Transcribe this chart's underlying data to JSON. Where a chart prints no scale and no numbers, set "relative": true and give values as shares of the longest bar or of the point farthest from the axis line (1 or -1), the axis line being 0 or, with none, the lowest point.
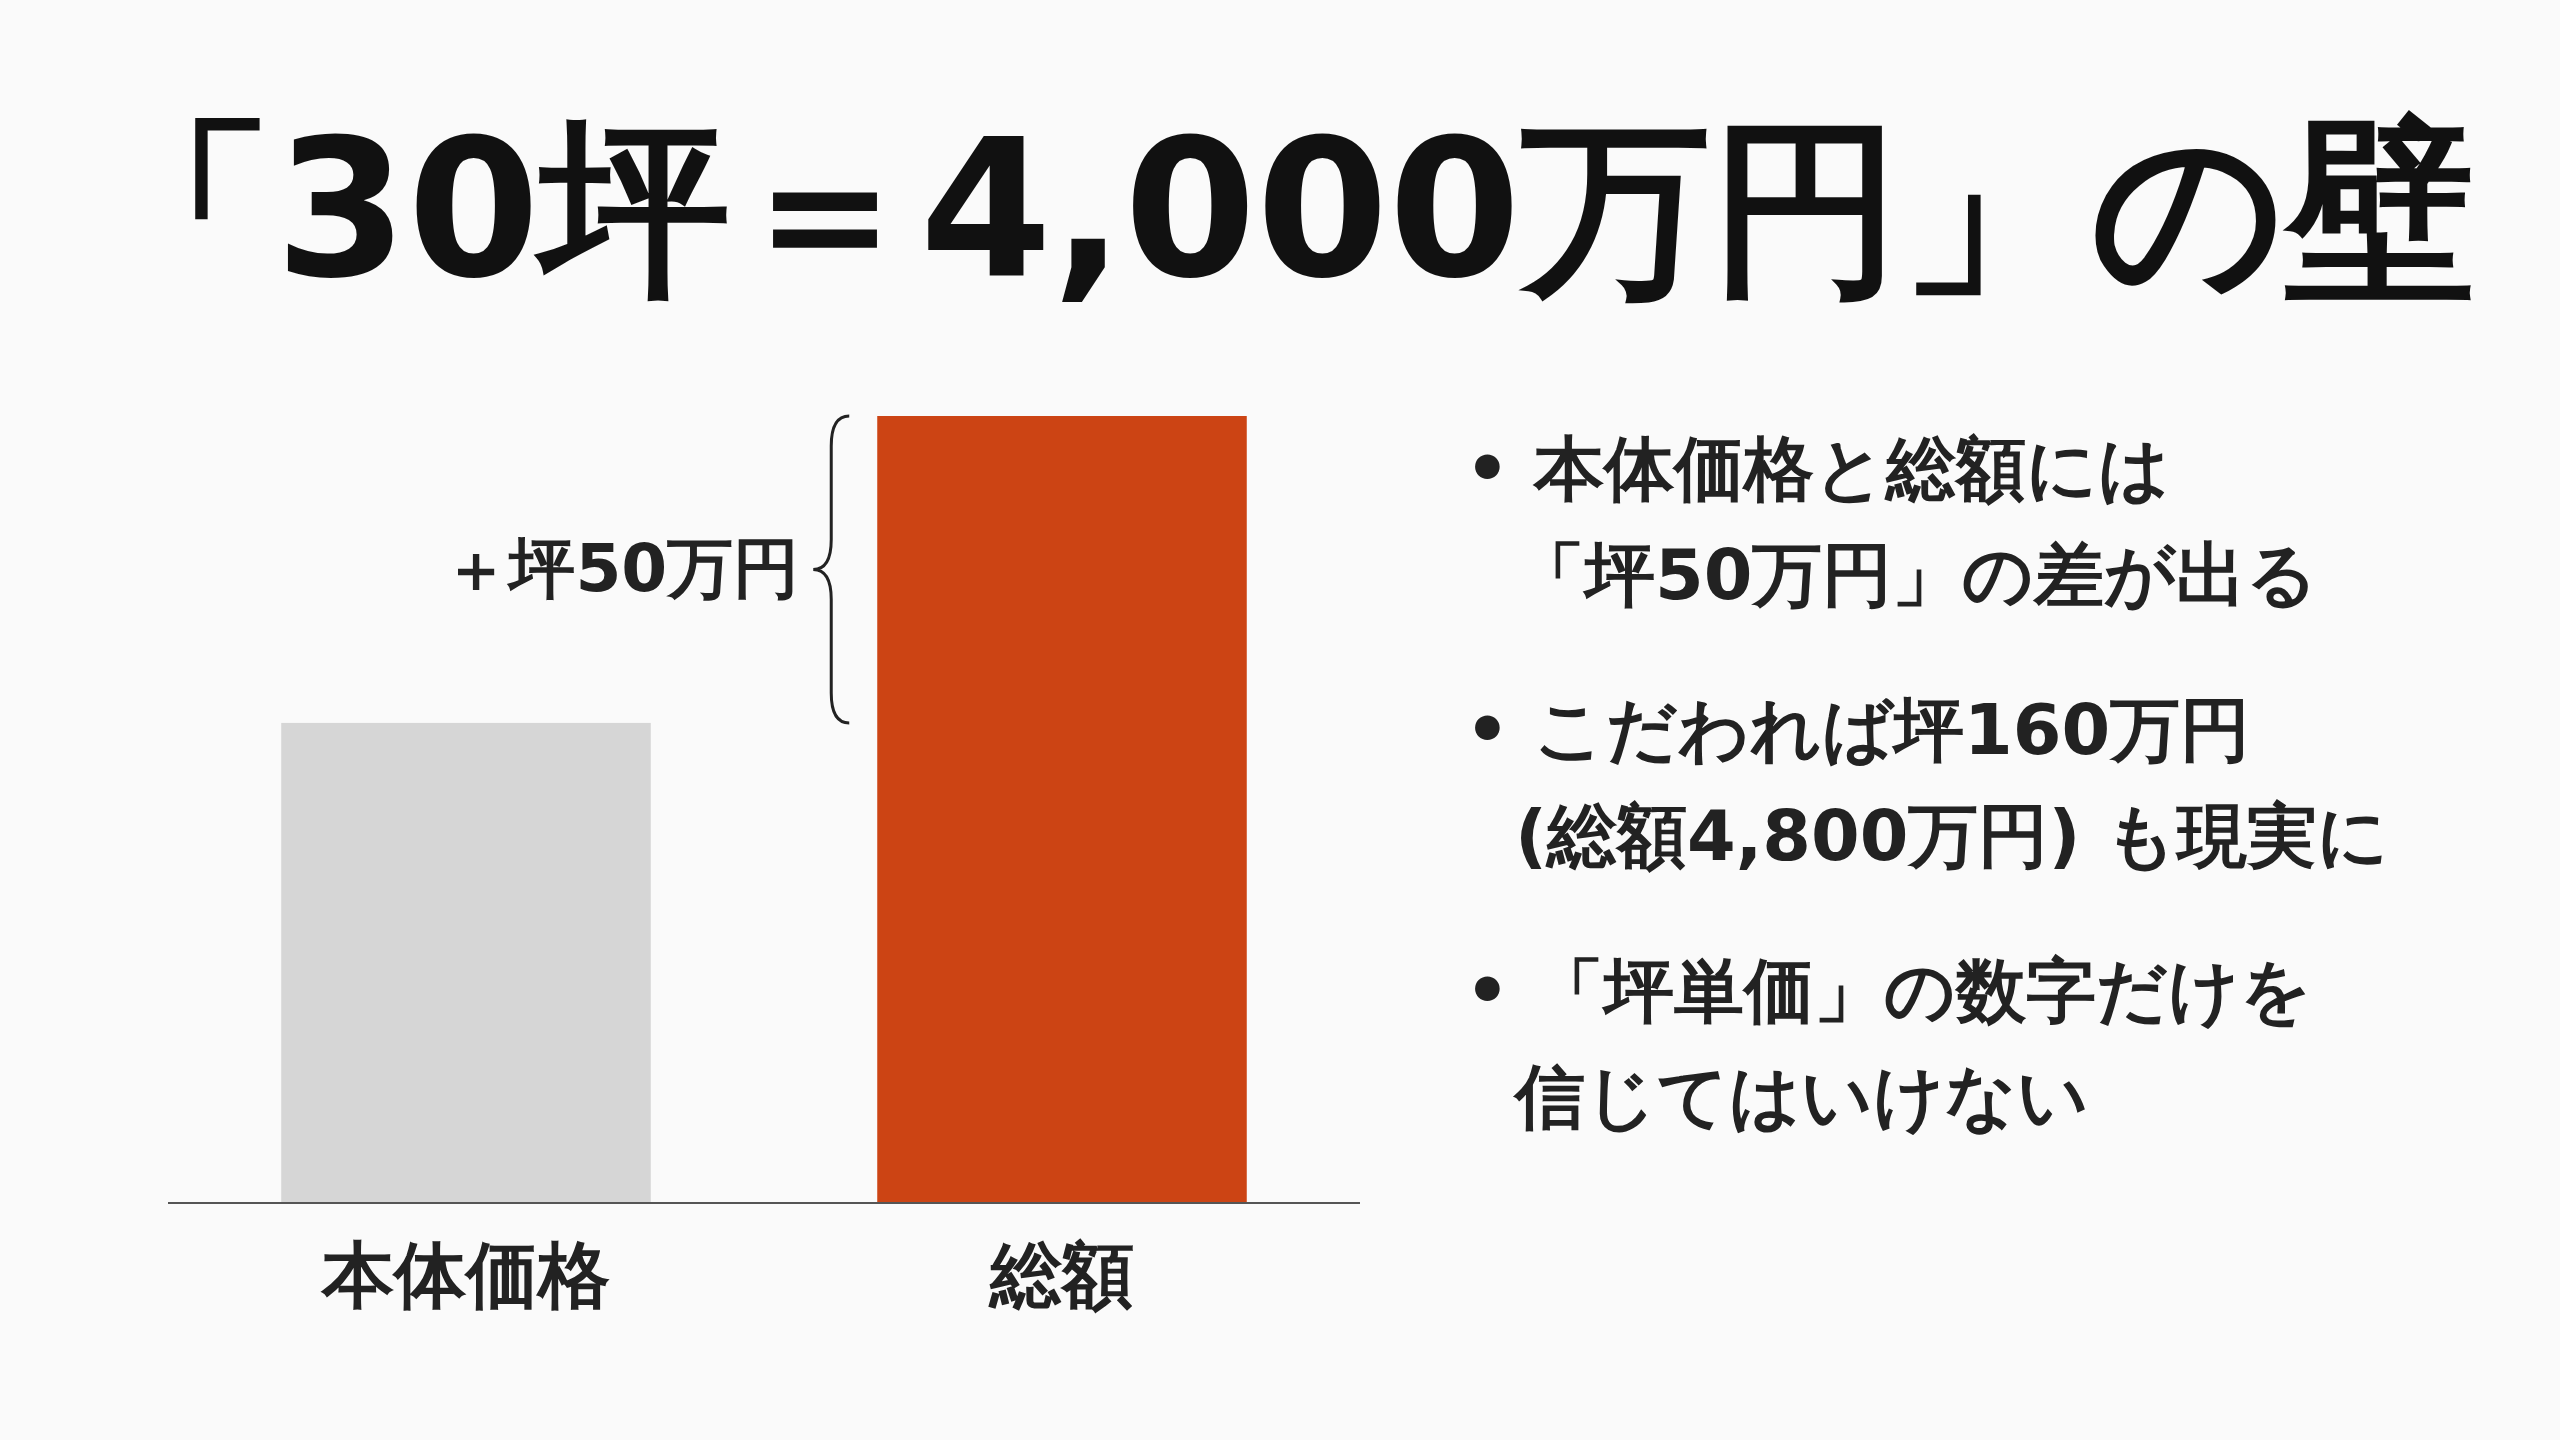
{
  "chart_data": {
    "type": "bar",
    "title": "「30坪＝4,000万円」の壁",
    "categories": [
      "本体価格",
      "総額"
    ],
    "values": [
      0.61,
      1
    ],
    "colors": [
      "#d6d6d6",
      "#cc4414"
    ],
    "relative": true,
    "grid": false,
    "legend": false,
    "annotations": [
      "＋坪50万円",
      "• 本体価格と総額には",
      "「坪50万円」の差が出る",
      "• こだわれば坪160万円",
      "(総額4,800万円) も現実に",
      "• 「坪単価」の数字だけを",
      "信じてはいけない"
    ]
  }
}
